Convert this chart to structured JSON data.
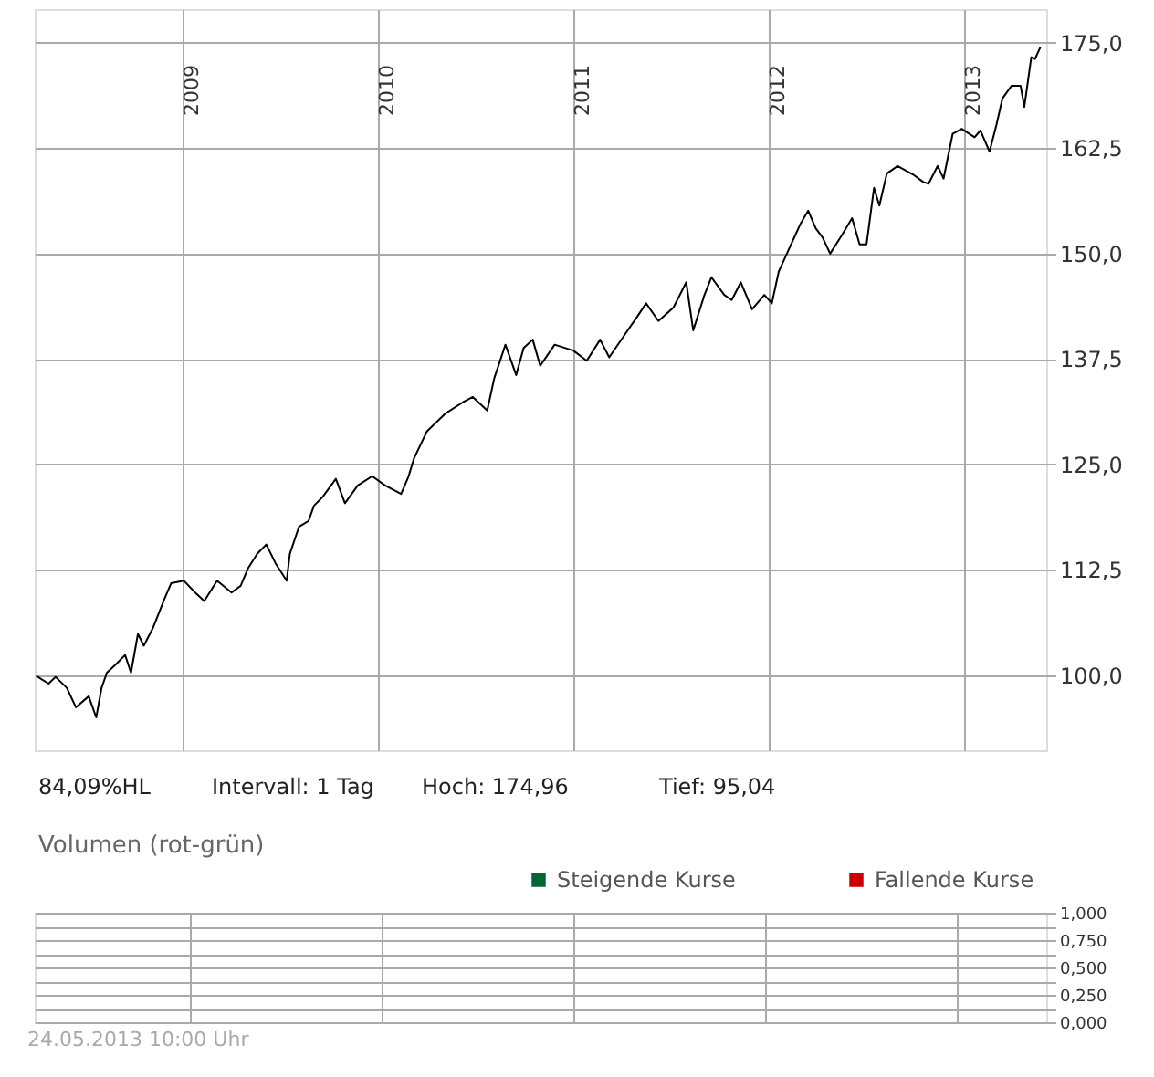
{
  "chart_data": [
    {
      "type": "line",
      "xlim": [
        "2008-03-30",
        "2013-06-03"
      ],
      "ylim": [
        91.1,
        179.0
      ],
      "xticks": [
        "2009",
        "2010",
        "2011",
        "2012",
        "2013"
      ],
      "yticks": [
        {
          "value": 100,
          "label": "100,0"
        },
        {
          "value": 112.5,
          "label": "112,5"
        },
        {
          "value": 125,
          "label": "125,0"
        },
        {
          "value": 137.5,
          "label": "137,5"
        },
        {
          "value": 150,
          "label": "150,0"
        },
        {
          "value": 162.5,
          "label": "162,5"
        },
        {
          "value": 175,
          "label": "175,0"
        }
      ],
      "grid": true,
      "legend": false,
      "marker": "none",
      "line_style": "solid",
      "annotations": [
        "84,09%HL",
        "Intervall: 1 Tag",
        "Hoch:   174,96",
        "Tief:   95,04"
      ],
      "x": [
        "2008-04-02",
        "2008-04-25",
        "2008-05-08",
        "2008-05-29",
        "2008-06-15",
        "2008-07-09",
        "2008-07-23",
        "2008-08-02",
        "2008-08-12",
        "2008-08-29",
        "2008-09-15",
        "2008-09-26",
        "2008-10-09",
        "2008-10-20",
        "2008-11-06",
        "2008-11-28",
        "2008-12-10",
        "2009-01-03",
        "2009-01-24",
        "2009-02-10",
        "2009-03-06",
        "2009-04-02",
        "2009-04-19",
        "2009-05-03",
        "2009-05-20",
        "2009-06-06",
        "2009-06-23",
        "2009-07-14",
        "2009-07-20",
        "2009-08-06",
        "2009-08-24",
        "2009-09-03",
        "2009-09-20",
        "2009-10-14",
        "2009-10-31",
        "2009-11-24",
        "2009-12-21",
        "2010-01-14",
        "2010-02-13",
        "2010-02-27",
        "2010-03-09",
        "2010-04-02",
        "2010-05-06",
        "2010-06-09",
        "2010-06-27",
        "2010-07-24",
        "2010-08-06",
        "2010-08-27",
        "2010-09-16",
        "2010-09-30",
        "2010-10-17",
        "2010-10-31",
        "2010-11-27",
        "2011-01-01",
        "2011-01-26",
        "2011-02-20",
        "2011-03-09",
        "2011-04-06",
        "2011-04-29",
        "2011-05-17",
        "2011-06-09",
        "2011-07-07",
        "2011-07-31",
        "2011-08-13",
        "2011-09-03",
        "2011-09-16",
        "2011-10-10",
        "2011-10-24",
        "2011-11-10",
        "2011-12-01",
        "2011-12-24",
        "2012-01-07",
        "2012-01-20",
        "2012-02-07",
        "2012-03-01",
        "2012-03-15",
        "2012-03-29",
        "2012-04-11",
        "2012-04-25",
        "2012-05-16",
        "2012-06-05",
        "2012-06-19",
        "2012-07-02",
        "2012-07-16",
        "2012-07-26",
        "2012-08-09",
        "2012-08-29",
        "2012-09-29",
        "2012-10-16",
        "2012-10-26",
        "2012-11-12",
        "2012-11-23",
        "2012-12-10",
        "2012-12-27",
        "2013-01-20",
        "2013-01-31",
        "2013-02-17",
        "2013-03-02",
        "2013-03-13",
        "2013-03-30",
        "2013-04-16",
        "2013-04-23",
        "2013-05-06",
        "2013-05-13",
        "2013-05-23"
      ],
      "series": [
        {
          "color": "#000000",
          "values": [
            99.9,
            99.0,
            99.8,
            98.5,
            96.2,
            97.5,
            95.0,
            98.5,
            100.3,
            101.3,
            102.4,
            100.3,
            104.9,
            103.5,
            105.6,
            109.1,
            110.9,
            111.2,
            109.8,
            108.8,
            111.2,
            109.8,
            110.6,
            112.7,
            114.4,
            115.5,
            113.3,
            111.2,
            114.4,
            117.6,
            118.3,
            120.1,
            121.2,
            123.3,
            120.4,
            122.5,
            123.6,
            122.5,
            121.5,
            123.6,
            125.7,
            128.9,
            131.0,
            132.4,
            133.0,
            131.4,
            135.2,
            139.2,
            135.6,
            138.8,
            139.8,
            136.7,
            139.2,
            138.5,
            137.3,
            139.8,
            137.7,
            140.3,
            142.4,
            144.1,
            142.0,
            143.6,
            146.6,
            140.9,
            145.1,
            147.2,
            145.1,
            144.5,
            146.6,
            143.4,
            145.1,
            144.1,
            147.9,
            150.4,
            153.6,
            155.1,
            153.0,
            151.9,
            150.0,
            152.1,
            154.2,
            151.1,
            151.1,
            157.8,
            155.7,
            159.5,
            160.4,
            159.3,
            158.5,
            158.3,
            160.4,
            158.9,
            164.2,
            164.8,
            163.8,
            164.6,
            162.1,
            165.3,
            168.4,
            169.9,
            169.9,
            167.4,
            173.3,
            173.1,
            174.5
          ]
        }
      ]
    },
    {
      "type": "bar",
      "title": "Volumen (rot-grün)",
      "ylim": [
        0,
        1
      ],
      "yticks": [
        {
          "value": 0,
          "label": "0,000"
        },
        {
          "value": 0.125,
          "label": null
        },
        {
          "value": 0.25,
          "label": "0,250"
        },
        {
          "value": 0.375,
          "label": null
        },
        {
          "value": 0.5,
          "label": "0,500"
        },
        {
          "value": 0.625,
          "label": null
        },
        {
          "value": 0.75,
          "label": "0,750"
        },
        {
          "value": 0.875,
          "label": null
        },
        {
          "value": 1,
          "label": "1,000"
        }
      ],
      "tick_labels": "y",
      "grid": true,
      "legend": "top right",
      "annotations": [
        "24.05.2013 10:00 Uhr"
      ],
      "series": [
        {
          "name": "Steigende Kurse",
          "color": "#006633"
        },
        {
          "name": "Fallende Kurse",
          "color": "#cc0000"
        }
      ]
    }
  ]
}
